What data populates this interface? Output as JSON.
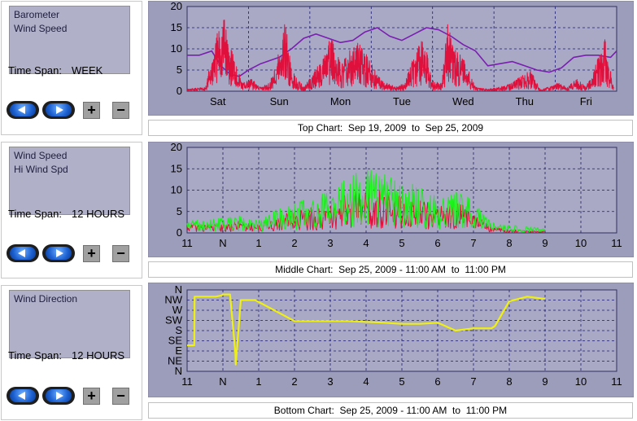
{
  "panels": [
    {
      "series": [
        "Barometer",
        "Wind Speed"
      ],
      "time_span_label": "Time Span:",
      "time_span_value": "WEEK",
      "caption": "Top Chart:  Sep 19, 2009  to  Sep 25, 2009"
    },
    {
      "series": [
        "Wind Speed",
        "Hi Wind Spd"
      ],
      "time_span_label": "Time Span:",
      "time_span_value": "12 HOURS",
      "caption": "Middle Chart:  Sep 25, 2009 - 11:00 AM  to  11:00 PM"
    },
    {
      "series": [
        "Wind Direction"
      ],
      "time_span_label": "Time Span:",
      "time_span_value": "12 HOURS",
      "caption": "Bottom Chart:  Sep 25, 2009 - 11:00 AM  to  11:00 PM"
    }
  ],
  "controls": {
    "back_icon": "left-arrow-icon",
    "forward_icon": "right-arrow-icon",
    "zoom_in_label": "+",
    "zoom_out_label": "−"
  },
  "colors": {
    "plot_bg": "#a9a9c6",
    "frame_bg": "#9c9cbb",
    "grid": "#1c1c6a",
    "wind_speed": "#e0103c",
    "barometer": "#7a1fb0",
    "hi_wind": "#19f019",
    "direction": "#f0f010"
  },
  "chart_data": [
    {
      "type": "line",
      "title": "",
      "x_type": "day",
      "x_ticks": [
        "Sat",
        "Sun",
        "Mon",
        "Tue",
        "Wed",
        "Thu",
        "Fri"
      ],
      "xlim": [
        0,
        7
      ],
      "ylim": [
        0,
        20
      ],
      "y_ticks": [
        0,
        5,
        10,
        15,
        20
      ],
      "grid": true,
      "series": [
        {
          "name": "Barometer",
          "color": "#7a1fb0",
          "x": [
            0,
            0.2,
            0.4,
            0.55,
            0.7,
            0.85,
            1.0,
            1.2,
            1.5,
            1.7,
            1.9,
            2.1,
            2.3,
            2.5,
            2.7,
            2.9,
            3.1,
            3.3,
            3.5,
            3.7,
            3.9,
            4.1,
            4.3,
            4.5,
            4.7,
            4.9,
            5.1,
            5.3,
            5.5,
            5.7,
            5.9,
            6.1,
            6.3,
            6.5,
            6.7,
            6.9,
            7.0
          ],
          "y": [
            8.5,
            8.5,
            9.5,
            6.0,
            4.0,
            3.5,
            5.0,
            6.5,
            8.0,
            10.0,
            12.5,
            13.5,
            12.5,
            11.5,
            12.0,
            14.0,
            15.0,
            13.0,
            12.0,
            13.5,
            15.0,
            14.5,
            13.0,
            11.0,
            9.5,
            6.0,
            6.5,
            7.0,
            6.0,
            5.0,
            4.5,
            5.5,
            8.0,
            8.5,
            8.5,
            8.0,
            9.5
          ]
        },
        {
          "name": "Wind Speed",
          "color": "#e0103c",
          "x": [
            0,
            0.3,
            0.45,
            0.6,
            0.75,
            0.9,
            1.05,
            1.2,
            1.35,
            1.5,
            1.6,
            1.7,
            1.8,
            1.9,
            2.05,
            2.2,
            2.35,
            2.5,
            2.65,
            2.8,
            2.95,
            3.1,
            3.25,
            3.4,
            3.55,
            3.7,
            3.85,
            4.0,
            4.15,
            4.25,
            4.35,
            4.5,
            4.7,
            4.9,
            5.1,
            5.3,
            5.45,
            5.6,
            5.75,
            5.9,
            6.05,
            6.2,
            6.35,
            6.5,
            6.65,
            6.8,
            6.95
          ],
          "y": [
            0.5,
            1,
            12,
            18,
            9,
            2,
            3,
            1,
            2,
            10,
            17,
            5,
            3,
            1,
            4,
            8,
            13,
            7,
            10,
            12,
            8,
            4,
            2,
            1,
            2,
            9,
            13,
            3,
            2,
            18,
            10,
            8,
            1,
            0.5,
            1,
            2,
            4,
            5,
            0.5,
            1,
            2,
            1,
            3,
            1,
            6,
            13,
            1
          ]
        }
      ]
    },
    {
      "type": "line",
      "title": "",
      "x_ticks": [
        "11",
        "N",
        "1",
        "2",
        "3",
        "4",
        "5",
        "6",
        "7",
        "8",
        "9",
        "10",
        "11"
      ],
      "xlim": [
        0,
        12
      ],
      "ylim": [
        0,
        20
      ],
      "y_ticks": [
        0,
        5,
        10,
        15,
        20
      ],
      "grid": true,
      "series": [
        {
          "name": "Wind Speed",
          "color": "#e0103c",
          "x": [
            0,
            0.5,
            1.0,
            1.5,
            2.0,
            2.5,
            3.0,
            3.5,
            4.0,
            4.5,
            5.0,
            5.5,
            6.0,
            6.5,
            7.0,
            7.5,
            8.0,
            8.5,
            9.0,
            9.5,
            10.0
          ],
          "y": [
            2.5,
            2.0,
            2.5,
            3.0,
            2.0,
            4.0,
            5.0,
            6.0,
            7.0,
            9.5,
            11.0,
            10.0,
            9.0,
            8.0,
            6.0,
            7.5,
            5.0,
            1.5,
            1.0,
            0.5,
            0.5
          ]
        },
        {
          "name": "Hi Wind Spd",
          "color": "#19f019",
          "x": [
            0,
            0.5,
            1.0,
            1.5,
            2.0,
            2.5,
            3.0,
            3.5,
            4.0,
            4.5,
            5.0,
            5.5,
            6.0,
            6.5,
            7.0,
            7.5,
            8.0,
            8.5,
            9.0,
            9.5,
            10.0
          ],
          "y": [
            3.5,
            3.0,
            3.5,
            4.0,
            3.0,
            5.5,
            7.0,
            8.5,
            10.0,
            14.0,
            15.0,
            14.0,
            12.0,
            11.0,
            9.0,
            11.0,
            7.5,
            2.5,
            2.0,
            1.5,
            1.0
          ]
        }
      ]
    },
    {
      "type": "line",
      "title": "",
      "x_ticks": [
        "11",
        "N",
        "1",
        "2",
        "3",
        "4",
        "5",
        "6",
        "7",
        "8",
        "9",
        "10",
        "11"
      ],
      "xlim": [
        0,
        12
      ],
      "ylim": [
        0,
        360
      ],
      "y_tick_values": [
        0,
        45,
        90,
        135,
        180,
        225,
        270,
        315,
        360
      ],
      "y_ticks": [
        "N",
        "NE",
        "E",
        "SE",
        "S",
        "SW",
        "W",
        "NW",
        "N"
      ],
      "grid": true,
      "series": [
        {
          "name": "Wind Direction",
          "color": "#f0f010",
          "x": [
            0,
            0.2,
            0.21,
            0.8,
            0.95,
            1.0,
            1.2,
            1.35,
            1.36,
            1.5,
            1.9,
            3.0,
            4.5,
            5.5,
            6.0,
            6.5,
            7.0,
            7.5,
            8.0,
            8.5,
            8.6,
            9.0,
            9.5,
            10.0
          ],
          "y": [
            115,
            115,
            330,
            330,
            335,
            340,
            340,
            80,
            30,
            315,
            315,
            222,
            222,
            215,
            210,
            210,
            215,
            180,
            190,
            190,
            200,
            310,
            330,
            320
          ]
        }
      ]
    }
  ]
}
